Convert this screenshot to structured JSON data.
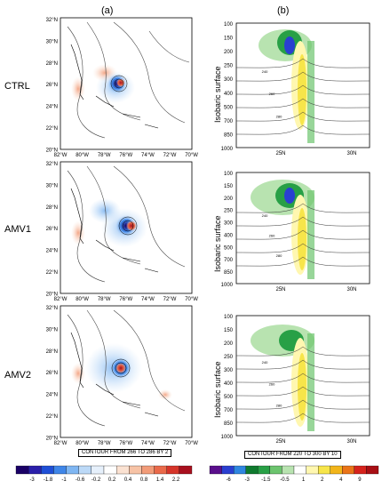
{
  "columns": {
    "a": "(a)",
    "b": "(b)"
  },
  "rows": [
    "CTRL",
    "AMV1",
    "AMV2"
  ],
  "map": {
    "lat_ticks": [
      "32°N",
      "30°N",
      "28°N",
      "26°N",
      "24°N",
      "22°N",
      "20°N"
    ],
    "lon_ticks": [
      "82°W",
      "80°W",
      "78°W",
      "76°W",
      "74°W",
      "72°W",
      "70°W"
    ],
    "contour_note": "CONTOUR FROM 266 TO 286 BY 2"
  },
  "section": {
    "ylabel": "Isobaric surface",
    "p_ticks": [
      "100",
      "150",
      "200",
      "250",
      "300",
      "400",
      "500",
      "700",
      "850",
      "1000"
    ],
    "x_ticks": [
      "25N",
      "30N"
    ],
    "contour_labels": [
      "240",
      "260",
      "280"
    ],
    "contour_note": "CONTOUR FROM 220 TO 300 BY 10"
  },
  "colorbar_a": {
    "labels": [
      "-3",
      "-1.8",
      "-1",
      "-0.6",
      "-0.2",
      "0.2",
      "0.4",
      "0.8",
      "1.4",
      "2.2"
    ],
    "colors": [
      "#1a0066",
      "#2a1faa",
      "#1f4fd6",
      "#3f86e8",
      "#7fb6f2",
      "#bcd9f7",
      "#e6f0fb",
      "#ffffff",
      "#fbe2d2",
      "#f7c3a6",
      "#f29c79",
      "#ea6a4a",
      "#d6352a",
      "#a8101e"
    ]
  },
  "colorbar_b": {
    "labels": [
      "-6",
      "-3",
      "-1.5",
      "-0.5",
      "1",
      "2",
      "4",
      "9"
    ],
    "colors": [
      "#5a0f8c",
      "#2a3fd0",
      "#2f86e0",
      "#0f7a2e",
      "#28a046",
      "#6cc46e",
      "#b8e3b0",
      "#ffffff",
      "#fff7b0",
      "#f7e54a",
      "#f2b51a",
      "#ea7418",
      "#d6231c",
      "#a80f14"
    ]
  }
}
